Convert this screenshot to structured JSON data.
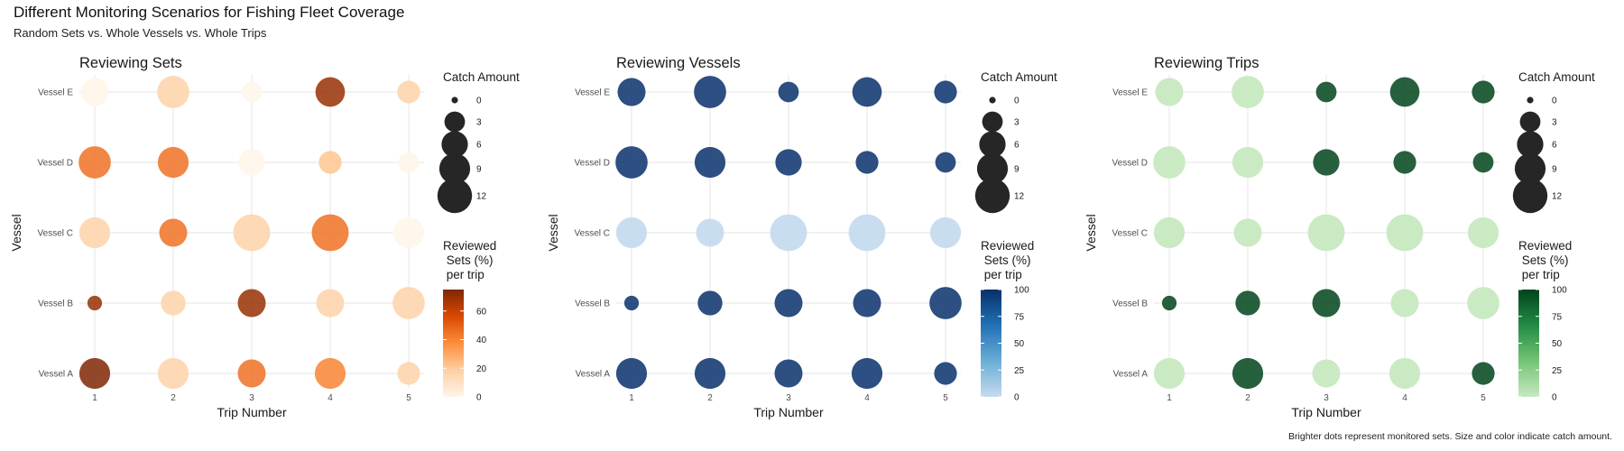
{
  "title": "Different Monitoring Scenarios for Fishing Fleet Coverage",
  "subtitle": "Random Sets vs. Whole Vessels vs. Whole Trips",
  "caption": "Brighter dots represent monitored sets. Size and color indicate catch amount.",
  "chart_data": [
    {
      "type": "scatter",
      "title": "Reviewing Sets",
      "xlabel": "Trip Number",
      "ylabel": "Vessel",
      "x_ticks": [
        "1",
        "2",
        "3",
        "4",
        "5"
      ],
      "y_ticks": [
        "Vessel A",
        "Vessel B",
        "Vessel C",
        "Vessel D",
        "Vessel E"
      ],
      "size_legend": {
        "title": "Catch Amount",
        "values": [
          0,
          3,
          6,
          9,
          12
        ]
      },
      "color_legend": {
        "title": "Reviewed\n Sets (%)\n per trip",
        "ticks": [
          0,
          20,
          40,
          60
        ],
        "range": [
          0,
          75
        ],
        "colors": [
          "#fff5eb",
          "#fdd0a2",
          "#fd8d3c",
          "#d94801",
          "#7f2704"
        ]
      },
      "grid": true,
      "points": [
        {
          "trip": 1,
          "vessel": "Vessel A",
          "catch": 9,
          "reviewed": 75
        },
        {
          "trip": 2,
          "vessel": "Vessel A",
          "catch": 9,
          "reviewed": 15
        },
        {
          "trip": 3,
          "vessel": "Vessel A",
          "catch": 7,
          "reviewed": 45
        },
        {
          "trip": 4,
          "vessel": "Vessel A",
          "catch": 9,
          "reviewed": 40
        },
        {
          "trip": 5,
          "vessel": "Vessel A",
          "catch": 4,
          "reviewed": 15
        },
        {
          "trip": 1,
          "vessel": "Vessel B",
          "catch": 1,
          "reviewed": 70
        },
        {
          "trip": 2,
          "vessel": "Vessel B",
          "catch": 5,
          "reviewed": 15
        },
        {
          "trip": 3,
          "vessel": "Vessel B",
          "catch": 7,
          "reviewed": 70
        },
        {
          "trip": 4,
          "vessel": "Vessel B",
          "catch": 7,
          "reviewed": 15
        },
        {
          "trip": 5,
          "vessel": "Vessel B",
          "catch": 10,
          "reviewed": 15
        },
        {
          "trip": 1,
          "vessel": "Vessel C",
          "catch": 9,
          "reviewed": 15
        },
        {
          "trip": 2,
          "vessel": "Vessel C",
          "catch": 7,
          "reviewed": 45
        },
        {
          "trip": 3,
          "vessel": "Vessel C",
          "catch": 14,
          "reviewed": 15
        },
        {
          "trip": 4,
          "vessel": "Vessel C",
          "catch": 14,
          "reviewed": 45
        },
        {
          "trip": 5,
          "vessel": "Vessel C",
          "catch": 9,
          "reviewed": 0
        },
        {
          "trip": 1,
          "vessel": "Vessel D",
          "catch": 10,
          "reviewed": 45
        },
        {
          "trip": 2,
          "vessel": "Vessel D",
          "catch": 9,
          "reviewed": 45
        },
        {
          "trip": 3,
          "vessel": "Vessel D",
          "catch": 6,
          "reviewed": 0
        },
        {
          "trip": 4,
          "vessel": "Vessel D",
          "catch": 4,
          "reviewed": 20
        },
        {
          "trip": 5,
          "vessel": "Vessel D",
          "catch": 3,
          "reviewed": 0
        },
        {
          "trip": 1,
          "vessel": "Vessel E",
          "catch": 7,
          "reviewed": 0
        },
        {
          "trip": 2,
          "vessel": "Vessel E",
          "catch": 10,
          "reviewed": 15
        },
        {
          "trip": 3,
          "vessel": "Vessel E",
          "catch": 3,
          "reviewed": 0
        },
        {
          "trip": 4,
          "vessel": "Vessel E",
          "catch": 8,
          "reviewed": 70
        },
        {
          "trip": 5,
          "vessel": "Vessel E",
          "catch": 4,
          "reviewed": 15
        }
      ]
    },
    {
      "type": "scatter",
      "title": "Reviewing Vessels",
      "xlabel": "Trip Number",
      "ylabel": "Vessel",
      "x_ticks": [
        "1",
        "2",
        "3",
        "4",
        "5"
      ],
      "y_ticks": [
        "Vessel A",
        "Vessel B",
        "Vessel C",
        "Vessel D",
        "Vessel E"
      ],
      "size_legend": {
        "title": "Catch Amount",
        "values": [
          0,
          3,
          6,
          9,
          12
        ]
      },
      "color_legend": {
        "title": "Reviewed\n Sets (%)\n per trip",
        "ticks": [
          0,
          25,
          50,
          75,
          100
        ],
        "range": [
          0,
          100
        ],
        "colors": [
          "#c6dbef",
          "#6baed6",
          "#2171b5",
          "#08306b"
        ]
      },
      "grid": true,
      "points": [
        {
          "trip": 1,
          "vessel": "Vessel A",
          "catch": 9,
          "reviewed": 100
        },
        {
          "trip": 2,
          "vessel": "Vessel A",
          "catch": 9,
          "reviewed": 100
        },
        {
          "trip": 3,
          "vessel": "Vessel A",
          "catch": 7,
          "reviewed": 100
        },
        {
          "trip": 4,
          "vessel": "Vessel A",
          "catch": 9,
          "reviewed": 100
        },
        {
          "trip": 5,
          "vessel": "Vessel A",
          "catch": 4,
          "reviewed": 100
        },
        {
          "trip": 1,
          "vessel": "Vessel B",
          "catch": 1,
          "reviewed": 100
        },
        {
          "trip": 2,
          "vessel": "Vessel B",
          "catch": 5,
          "reviewed": 100
        },
        {
          "trip": 3,
          "vessel": "Vessel B",
          "catch": 7,
          "reviewed": 100
        },
        {
          "trip": 4,
          "vessel": "Vessel B",
          "catch": 7,
          "reviewed": 100
        },
        {
          "trip": 5,
          "vessel": "Vessel B",
          "catch": 10,
          "reviewed": 100
        },
        {
          "trip": 1,
          "vessel": "Vessel C",
          "catch": 9,
          "reviewed": 0
        },
        {
          "trip": 2,
          "vessel": "Vessel C",
          "catch": 7,
          "reviewed": 0
        },
        {
          "trip": 3,
          "vessel": "Vessel C",
          "catch": 14,
          "reviewed": 0
        },
        {
          "trip": 4,
          "vessel": "Vessel C",
          "catch": 14,
          "reviewed": 0
        },
        {
          "trip": 5,
          "vessel": "Vessel C",
          "catch": 9,
          "reviewed": 0
        },
        {
          "trip": 1,
          "vessel": "Vessel D",
          "catch": 10,
          "reviewed": 100
        },
        {
          "trip": 2,
          "vessel": "Vessel D",
          "catch": 9,
          "reviewed": 100
        },
        {
          "trip": 3,
          "vessel": "Vessel D",
          "catch": 6,
          "reviewed": 100
        },
        {
          "trip": 4,
          "vessel": "Vessel D",
          "catch": 4,
          "reviewed": 100
        },
        {
          "trip": 5,
          "vessel": "Vessel D",
          "catch": 3,
          "reviewed": 100
        },
        {
          "trip": 1,
          "vessel": "Vessel E",
          "catch": 7,
          "reviewed": 100
        },
        {
          "trip": 2,
          "vessel": "Vessel E",
          "catch": 10,
          "reviewed": 100
        },
        {
          "trip": 3,
          "vessel": "Vessel E",
          "catch": 3,
          "reviewed": 100
        },
        {
          "trip": 4,
          "vessel": "Vessel E",
          "catch": 8,
          "reviewed": 100
        },
        {
          "trip": 5,
          "vessel": "Vessel E",
          "catch": 4,
          "reviewed": 100
        }
      ]
    },
    {
      "type": "scatter",
      "title": "Reviewing Trips",
      "xlabel": "Trip Number",
      "ylabel": "Vessel",
      "x_ticks": [
        "1",
        "2",
        "3",
        "4",
        "5"
      ],
      "y_ticks": [
        "Vessel A",
        "Vessel B",
        "Vessel C",
        "Vessel D",
        "Vessel E"
      ],
      "size_legend": {
        "title": "Catch Amount",
        "values": [
          0,
          3,
          6,
          9,
          12
        ]
      },
      "color_legend": {
        "title": "Reviewed\n Sets (%)\n per trip",
        "ticks": [
          0,
          25,
          50,
          75,
          100
        ],
        "range": [
          0,
          100
        ],
        "colors": [
          "#c7e9c0",
          "#74c476",
          "#238b45",
          "#00441b"
        ]
      },
      "grid": true,
      "points": [
        {
          "trip": 1,
          "vessel": "Vessel A",
          "catch": 9,
          "reviewed": 0
        },
        {
          "trip": 2,
          "vessel": "Vessel A",
          "catch": 9,
          "reviewed": 100
        },
        {
          "trip": 3,
          "vessel": "Vessel A",
          "catch": 7,
          "reviewed": 0
        },
        {
          "trip": 4,
          "vessel": "Vessel A",
          "catch": 9,
          "reviewed": 0
        },
        {
          "trip": 5,
          "vessel": "Vessel A",
          "catch": 4,
          "reviewed": 100
        },
        {
          "trip": 1,
          "vessel": "Vessel B",
          "catch": 1,
          "reviewed": 100
        },
        {
          "trip": 2,
          "vessel": "Vessel B",
          "catch": 5,
          "reviewed": 100
        },
        {
          "trip": 3,
          "vessel": "Vessel B",
          "catch": 7,
          "reviewed": 100
        },
        {
          "trip": 4,
          "vessel": "Vessel B",
          "catch": 7,
          "reviewed": 0
        },
        {
          "trip": 5,
          "vessel": "Vessel B",
          "catch": 10,
          "reviewed": 0
        },
        {
          "trip": 1,
          "vessel": "Vessel C",
          "catch": 9,
          "reviewed": 0
        },
        {
          "trip": 2,
          "vessel": "Vessel C",
          "catch": 7,
          "reviewed": 0
        },
        {
          "trip": 3,
          "vessel": "Vessel C",
          "catch": 14,
          "reviewed": 0
        },
        {
          "trip": 4,
          "vessel": "Vessel C",
          "catch": 14,
          "reviewed": 0
        },
        {
          "trip": 5,
          "vessel": "Vessel C",
          "catch": 9,
          "reviewed": 0
        },
        {
          "trip": 1,
          "vessel": "Vessel D",
          "catch": 10,
          "reviewed": 0
        },
        {
          "trip": 2,
          "vessel": "Vessel D",
          "catch": 9,
          "reviewed": 0
        },
        {
          "trip": 3,
          "vessel": "Vessel D",
          "catch": 6,
          "reviewed": 100
        },
        {
          "trip": 4,
          "vessel": "Vessel D",
          "catch": 4,
          "reviewed": 100
        },
        {
          "trip": 5,
          "vessel": "Vessel D",
          "catch": 3,
          "reviewed": 100
        },
        {
          "trip": 1,
          "vessel": "Vessel E",
          "catch": 7,
          "reviewed": 0
        },
        {
          "trip": 2,
          "vessel": "Vessel E",
          "catch": 10,
          "reviewed": 0
        },
        {
          "trip": 3,
          "vessel": "Vessel E",
          "catch": 3,
          "reviewed": 100
        },
        {
          "trip": 4,
          "vessel": "Vessel E",
          "catch": 8,
          "reviewed": 100
        },
        {
          "trip": 5,
          "vessel": "Vessel E",
          "catch": 4,
          "reviewed": 100
        }
      ]
    }
  ]
}
